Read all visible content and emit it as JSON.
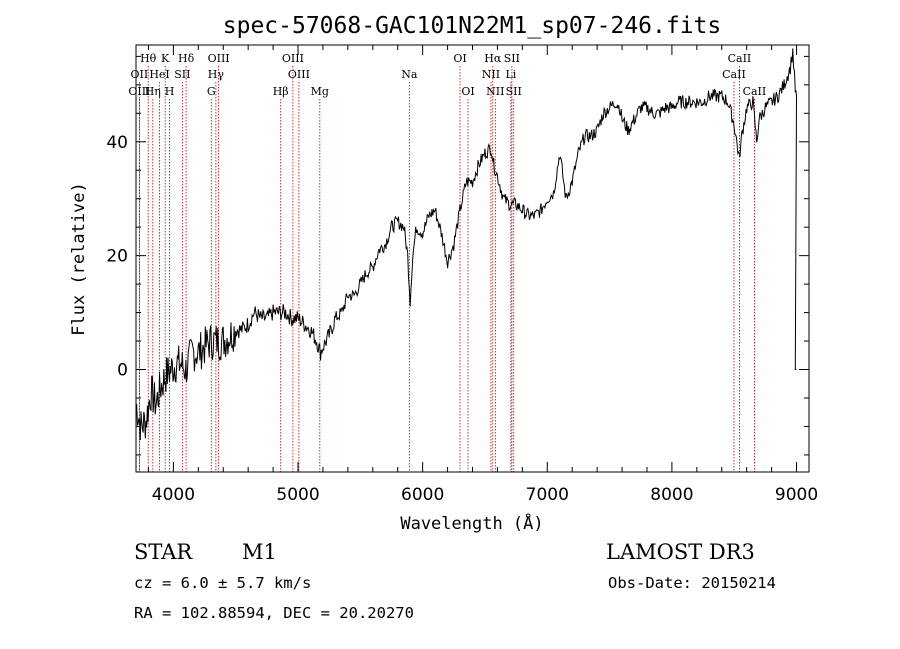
{
  "chart_data": {
    "type": "line",
    "title": "spec-57068-GAC101N22M1_sp07-246.fits",
    "xlabel": "Wavelength (Å)",
    "ylabel": "Flux (relative)",
    "xlim": [
      3700,
      9100
    ],
    "ylim": [
      -18,
      57
    ],
    "xticks": [
      4000,
      5000,
      6000,
      7000,
      8000,
      9000
    ],
    "yticks": [
      0,
      20,
      40
    ],
    "series": [
      {
        "name": "spectrum",
        "x": [
          3700,
          3740,
          3780,
          3820,
          3860,
          3900,
          3940,
          3980,
          4020,
          4060,
          4100,
          4150,
          4200,
          4250,
          4300,
          4350,
          4400,
          4450,
          4500,
          4550,
          4600,
          4650,
          4700,
          4750,
          4800,
          4850,
          4900,
          4950,
          5000,
          5050,
          5100,
          5150,
          5180,
          5200,
          5250,
          5300,
          5350,
          5400,
          5450,
          5500,
          5550,
          5600,
          5650,
          5700,
          5750,
          5800,
          5850,
          5880,
          5900,
          5920,
          5950,
          6000,
          6050,
          6100,
          6150,
          6200,
          6250,
          6300,
          6350,
          6400,
          6450,
          6500,
          6550,
          6570,
          6600,
          6650,
          6700,
          6750,
          6800,
          6850,
          6900,
          6950,
          7000,
          7050,
          7100,
          7150,
          7200,
          7250,
          7300,
          7350,
          7400,
          7450,
          7500,
          7550,
          7580,
          7600,
          7650,
          7700,
          7750,
          7800,
          7850,
          7900,
          7950,
          8000,
          8050,
          8100,
          8150,
          8200,
          8250,
          8300,
          8350,
          8400,
          8450,
          8500,
          8540,
          8560,
          8600,
          8650,
          8680,
          8700,
          8750,
          8800,
          8850,
          8900,
          8950,
          8970,
          8990,
          9000
        ],
        "y": [
          -6,
          -10,
          -9,
          -4,
          -6,
          -3,
          -1,
          0,
          1,
          1,
          0,
          3,
          3,
          4,
          5,
          5,
          5,
          6,
          7,
          7,
          8,
          10,
          9,
          9,
          10,
          10,
          10,
          9,
          9,
          8,
          7,
          5,
          3,
          4,
          6,
          9,
          10,
          13,
          13,
          15,
          17,
          18,
          21,
          22,
          25,
          26,
          25,
          20,
          12,
          20,
          25,
          24,
          27,
          28,
          24,
          19,
          22,
          28,
          33,
          33,
          36,
          38,
          39,
          36,
          34,
          30,
          29,
          29,
          28,
          27,
          27,
          28,
          30,
          31,
          38,
          30,
          33,
          38,
          41,
          41,
          42,
          45,
          46,
          47,
          46,
          44,
          42,
          44,
          46,
          46,
          45,
          45,
          46,
          46,
          47,
          47,
          47,
          47,
          47,
          48,
          48,
          48,
          47,
          43,
          37,
          41,
          46,
          47,
          40,
          44,
          46,
          47,
          48,
          50,
          53,
          56,
          49,
          48
        ]
      }
    ],
    "emission_lines": [
      {
        "label": "Hθ",
        "wavelength": 3798,
        "row": 1
      },
      {
        "label": "OII",
        "wavelength": 3727,
        "row": 2
      },
      {
        "label": "OIII",
        "wavelength": 3727,
        "row": 3
      },
      {
        "label": "HeI",
        "wavelength": 3889,
        "row": 2
      },
      {
        "label": "Hη",
        "wavelength": 3835,
        "row": 3
      },
      {
        "label": "K",
        "wavelength": 3934,
        "row": 1
      },
      {
        "label": "H",
        "wavelength": 3969,
        "row": 3
      },
      {
        "label": "SII",
        "wavelength": 4072,
        "row": 2
      },
      {
        "label": "Hδ",
        "wavelength": 4102,
        "row": 1
      },
      {
        "label": "OIII",
        "wavelength": 4363,
        "row": 1
      },
      {
        "label": "Hγ",
        "wavelength": 4341,
        "row": 2
      },
      {
        "label": "G",
        "wavelength": 4304,
        "row": 3
      },
      {
        "label": "OIII",
        "wavelength": 4959,
        "row": 1
      },
      {
        "label": "OIII",
        "wavelength": 5007,
        "row": 2
      },
      {
        "label": "Hβ",
        "wavelength": 4861,
        "row": 3
      },
      {
        "label": "Mg",
        "wavelength": 5175,
        "row": 3
      },
      {
        "label": "Na",
        "wavelength": 5893,
        "row": 2
      },
      {
        "label": "OI",
        "wavelength": 6300,
        "row": 1
      },
      {
        "label": "OI",
        "wavelength": 6364,
        "row": 3
      },
      {
        "label": "Hα",
        "wavelength": 6563,
        "row": 1
      },
      {
        "label": "NII",
        "wavelength": 6548,
        "row": 2
      },
      {
        "label": "NII",
        "wavelength": 6583,
        "row": 3
      },
      {
        "label": "SII",
        "wavelength": 6716,
        "row": 1
      },
      {
        "label": "Li",
        "wavelength": 6708,
        "row": 2
      },
      {
        "label": "SII",
        "wavelength": 6731,
        "row": 3
      },
      {
        "label": "CaII",
        "wavelength": 8542,
        "row": 1
      },
      {
        "label": "CaII",
        "wavelength": 8498,
        "row": 2
      },
      {
        "label": "CaII",
        "wavelength": 8662,
        "row": 3
      }
    ]
  },
  "info": {
    "object_class": "STAR",
    "subclass": "M1",
    "survey": "LAMOST DR3",
    "redshift_text": "cz = 6.0 ± 5.7 km/s",
    "obs_date_text": "Obs-Date: 20150214",
    "coords_text": "RA = 102.88594, DEC =  20.20270"
  },
  "colors": {
    "spectrum": "#000000",
    "line_markers": "#b00000",
    "axes": "#000000"
  }
}
